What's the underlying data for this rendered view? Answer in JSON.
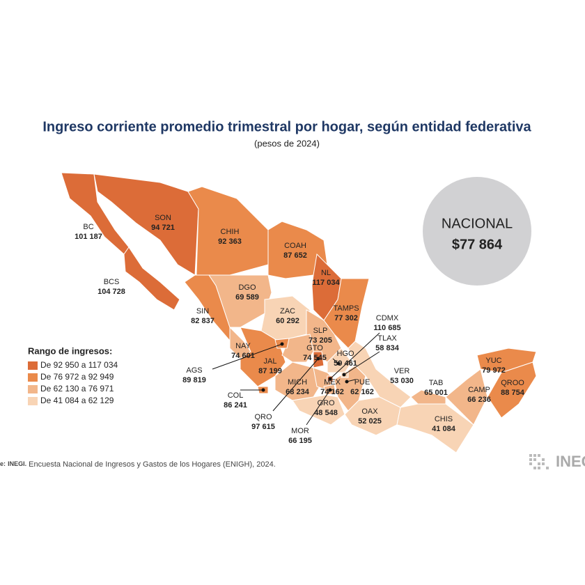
{
  "title": "Ingreso corriente promedio trimestral por hogar, según entidad federativa",
  "subtitle": "(pesos de 2024)",
  "national": {
    "label": "NACIONAL",
    "value": "$77 864"
  },
  "legend": {
    "title": "Rango de ingresos:",
    "items": [
      {
        "label": "De 92 950 a 117 034",
        "color": "#dc6c38"
      },
      {
        "label": "De 76 972 a 92 949",
        "color": "#ea8a4b"
      },
      {
        "label": "De 62 130 a 76 971",
        "color": "#f2b68a"
      },
      {
        "label": "De 41 084 a 62 129",
        "color": "#f8d4b5"
      }
    ]
  },
  "states": [
    {
      "abbr": "BC",
      "value": "101 187",
      "color": "#dc6c38"
    },
    {
      "abbr": "BCS",
      "value": "104 728",
      "color": "#dc6c38"
    },
    {
      "abbr": "SON",
      "value": "94 721",
      "color": "#dc6c38"
    },
    {
      "abbr": "CHIH",
      "value": "92 363",
      "color": "#ea8a4b"
    },
    {
      "abbr": "COAH",
      "value": "87 652",
      "color": "#ea8a4b"
    },
    {
      "abbr": "NL",
      "value": "117 034",
      "color": "#dc6c38"
    },
    {
      "abbr": "TAMPS",
      "value": "77 302",
      "color": "#ea8a4b"
    },
    {
      "abbr": "SIN",
      "value": "82 837",
      "color": "#ea8a4b"
    },
    {
      "abbr": "DGO",
      "value": "69 589",
      "color": "#f2b68a"
    },
    {
      "abbr": "ZAC",
      "value": "60 292",
      "color": "#f8d4b5"
    },
    {
      "abbr": "SLP",
      "value": "73 205",
      "color": "#f2b68a"
    },
    {
      "abbr": "NAY",
      "value": "74 601",
      "color": "#f2b68a"
    },
    {
      "abbr": "JAL",
      "value": "87 199",
      "color": "#ea8a4b"
    },
    {
      "abbr": "GTO",
      "value": "74 545",
      "color": "#f2b68a"
    },
    {
      "abbr": "HGO",
      "value": "59 461",
      "color": "#f8d4b5"
    },
    {
      "abbr": "AGS",
      "value": "89 819",
      "color": "#ea8a4b"
    },
    {
      "abbr": "MICH",
      "value": "68 234",
      "color": "#f2b68a"
    },
    {
      "abbr": "COL",
      "value": "86 241",
      "color": "#ea8a4b"
    },
    {
      "abbr": "QRO",
      "value": "97 615",
      "color": "#dc6c38"
    },
    {
      "abbr": "MEX",
      "value": "74 162",
      "color": "#f2b68a"
    },
    {
      "abbr": "PUE",
      "value": "62 162",
      "color": "#f2b68a"
    },
    {
      "abbr": "GRO",
      "value": "48 548",
      "color": "#f8d4b5"
    },
    {
      "abbr": "OAX",
      "value": "52 025",
      "color": "#f8d4b5"
    },
    {
      "abbr": "MOR",
      "value": "66 195",
      "color": "#f2b68a"
    },
    {
      "abbr": "CDMX",
      "value": "110 685",
      "color": "#dc6c38"
    },
    {
      "abbr": "TLAX",
      "value": "58 834",
      "color": "#f8d4b5"
    },
    {
      "abbr": "VER",
      "value": "53 030",
      "color": "#f8d4b5"
    },
    {
      "abbr": "TAB",
      "value": "65 001",
      "color": "#f2b68a"
    },
    {
      "abbr": "CAMP",
      "value": "66 236",
      "color": "#f2b68a"
    },
    {
      "abbr": "YUC",
      "value": "79 972",
      "color": "#ea8a4b"
    },
    {
      "abbr": "QROO",
      "value": "88 754",
      "color": "#ea8a4b"
    },
    {
      "abbr": "CHIS",
      "value": "41 084",
      "color": "#f8d4b5"
    }
  ],
  "source": {
    "label": "e:",
    "org": "INEGI.",
    "text": "Encuesta Nacional de Ingresos y Gastos de los Hogares (ENIGH), 2024."
  },
  "logo": "INEG"
}
